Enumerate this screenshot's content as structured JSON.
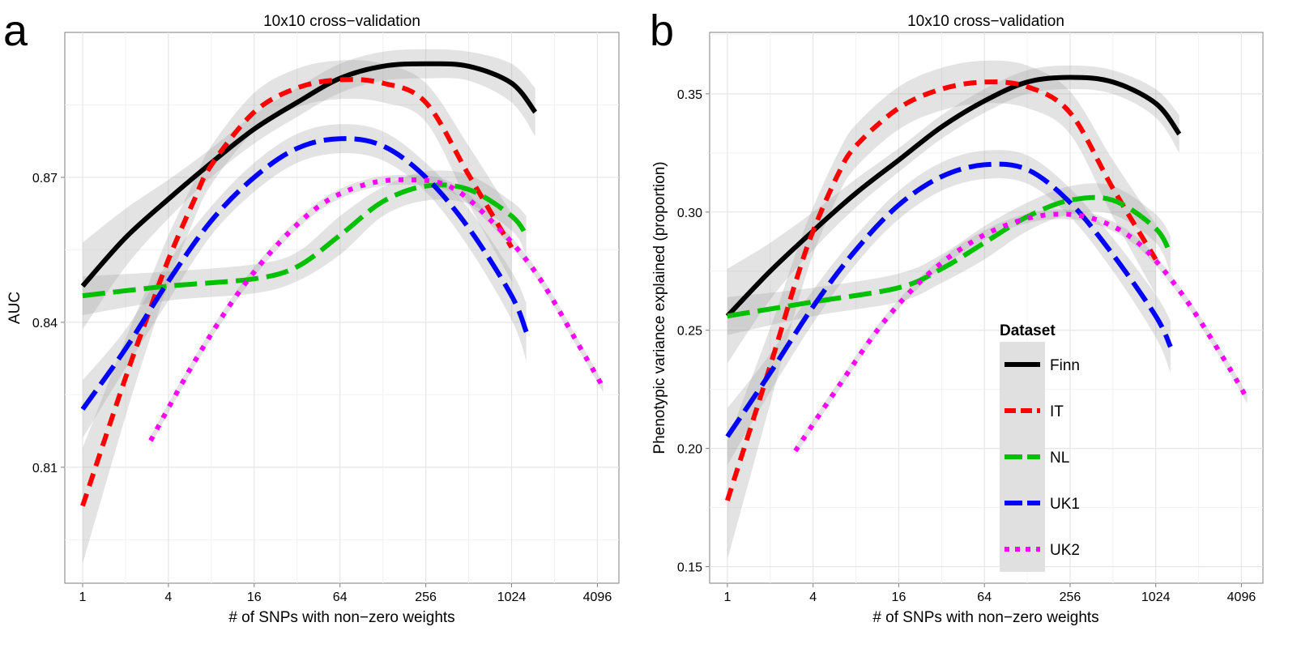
{
  "chart_data": [
    {
      "panel_label": "a",
      "type": "line",
      "title": "10x10 cross−validation",
      "xlabel": "# of SNPs with non−zero weights",
      "ylabel": "AUC",
      "x_scale": "log2",
      "xlim": [
        0.75,
        5800
      ],
      "x_ticks": [
        1,
        4,
        16,
        64,
        256,
        1024,
        4096
      ],
      "x_tick_labels": [
        "1",
        "4",
        "16",
        "64",
        "256",
        "1024",
        "4096"
      ],
      "ylim": [
        0.786,
        0.9
      ],
      "y_ticks": [
        0.81,
        0.84,
        0.87
      ],
      "y_tick_labels": [
        "0.81",
        "0.84",
        "0.87"
      ],
      "grid": true,
      "series": [
        {
          "name": "Finn",
          "color": "#000000",
          "style": "solid",
          "x": [
            1,
            2,
            4,
            8,
            16,
            32,
            64,
            128,
            256,
            512,
            1024,
            1500
          ],
          "y": [
            0.8475,
            0.8575,
            0.8655,
            0.873,
            0.88,
            0.8855,
            0.8905,
            0.893,
            0.8935,
            0.893,
            0.8895,
            0.8835
          ],
          "ci": [
            0.009,
            0.006,
            0.004,
            0.003,
            0.003,
            0.003,
            0.003,
            0.003,
            0.003,
            0.003,
            0.004,
            0.005
          ]
        },
        {
          "name": "IT",
          "color": "#ff0000",
          "style": "dashed",
          "x": [
            1,
            2,
            3,
            4,
            6,
            8,
            16,
            32,
            64,
            128,
            256,
            512,
            1024
          ],
          "y": [
            0.802,
            0.8285,
            0.843,
            0.853,
            0.865,
            0.8725,
            0.8835,
            0.8885,
            0.8902,
            0.8895,
            0.8855,
            0.8705,
            0.8555
          ],
          "ci": [
            0.012,
            0.008,
            0.006,
            0.005,
            0.004,
            0.004,
            0.004,
            0.004,
            0.004,
            0.004,
            0.004,
            0.006,
            0.007
          ]
        },
        {
          "name": "NL",
          "color": "#00c000",
          "style": "longdash",
          "x": [
            1,
            4,
            16,
            32,
            64,
            128,
            256,
            512,
            1024,
            1300
          ],
          "y": [
            0.8455,
            0.8475,
            0.849,
            0.8515,
            0.858,
            0.865,
            0.8682,
            0.8675,
            0.862,
            0.858
          ],
          "ci": [
            0.004,
            0.003,
            0.003,
            0.003,
            0.004,
            0.003,
            0.003,
            0.003,
            0.003,
            0.004
          ]
        },
        {
          "name": "UK1",
          "color": "#0000ff",
          "style": "longdash",
          "x": [
            1,
            2,
            4,
            8,
            16,
            32,
            64,
            128,
            256,
            512,
            1024,
            1300
          ],
          "y": [
            0.822,
            0.8345,
            0.8485,
            0.861,
            0.87,
            0.876,
            0.878,
            0.8765,
            0.87,
            0.8595,
            0.8455,
            0.838
          ],
          "ci": [
            0.006,
            0.004,
            0.004,
            0.003,
            0.003,
            0.003,
            0.003,
            0.003,
            0.003,
            0.004,
            0.005,
            0.006
          ]
        },
        {
          "name": "UK2",
          "color": "#ff00ff",
          "style": "dotted",
          "x": [
            3,
            6,
            12,
            24,
            48,
            96,
            192,
            384,
            768,
            1536,
            3072,
            4500
          ],
          "y": [
            0.8155,
            0.8315,
            0.8455,
            0.8565,
            0.8645,
            0.8685,
            0.8695,
            0.868,
            0.8605,
            0.85,
            0.835,
            0.8265
          ],
          "ci": [
            0.001,
            0.001,
            0.001,
            0.001,
            0.001,
            0.001,
            0.001,
            0.001,
            0.001,
            0.001,
            0.001,
            0.001
          ]
        }
      ]
    },
    {
      "panel_label": "b",
      "type": "line",
      "title": "10x10 cross−validation",
      "xlabel": "# of SNPs with non−zero weights",
      "ylabel": "Phenotypic variance explained (proportion)",
      "x_scale": "log2",
      "xlim": [
        0.75,
        5800
      ],
      "x_ticks": [
        1,
        4,
        16,
        64,
        256,
        1024,
        4096
      ],
      "x_tick_labels": [
        "1",
        "4",
        "16",
        "64",
        "256",
        "1024",
        "4096"
      ],
      "ylim": [
        0.143,
        0.376
      ],
      "y_ticks": [
        0.15,
        0.2,
        0.25,
        0.3,
        0.35
      ],
      "y_tick_labels": [
        "0.15",
        "0.20",
        "0.25",
        "0.30",
        "0.35"
      ],
      "grid": true,
      "legend_position": "inside-right",
      "series": [
        {
          "name": "Finn",
          "color": "#000000",
          "style": "solid",
          "x": [
            1,
            2,
            4,
            8,
            16,
            32,
            64,
            128,
            256,
            512,
            1024,
            1500
          ],
          "y": [
            0.256,
            0.275,
            0.292,
            0.308,
            0.322,
            0.336,
            0.347,
            0.355,
            0.357,
            0.355,
            0.346,
            0.333
          ],
          "ci": [
            0.02,
            0.012,
            0.008,
            0.006,
            0.005,
            0.005,
            0.005,
            0.005,
            0.005,
            0.005,
            0.006,
            0.008
          ]
        },
        {
          "name": "IT",
          "color": "#ff0000",
          "style": "dashed",
          "x": [
            1,
            2,
            3,
            4,
            6,
            8,
            16,
            32,
            64,
            128,
            256,
            512,
            1024
          ],
          "y": [
            0.178,
            0.235,
            0.27,
            0.292,
            0.316,
            0.328,
            0.344,
            0.352,
            0.355,
            0.353,
            0.342,
            0.31,
            0.28
          ],
          "ci": [
            0.025,
            0.016,
            0.012,
            0.01,
            0.009,
            0.009,
            0.009,
            0.009,
            0.009,
            0.009,
            0.009,
            0.012,
            0.015
          ]
        },
        {
          "name": "NL",
          "color": "#00c000",
          "style": "longdash",
          "x": [
            1,
            4,
            16,
            32,
            64,
            128,
            256,
            512,
            1024,
            1300
          ],
          "y": [
            0.256,
            0.262,
            0.268,
            0.276,
            0.287,
            0.298,
            0.305,
            0.305,
            0.293,
            0.282
          ],
          "ci": [
            0.008,
            0.006,
            0.006,
            0.006,
            0.007,
            0.006,
            0.006,
            0.006,
            0.006,
            0.008
          ]
        },
        {
          "name": "UK1",
          "color": "#0000ff",
          "style": "longdash",
          "x": [
            1,
            2,
            4,
            8,
            16,
            32,
            64,
            128,
            256,
            512,
            1024,
            1300
          ],
          "y": [
            0.205,
            0.232,
            0.26,
            0.284,
            0.303,
            0.315,
            0.32,
            0.318,
            0.304,
            0.282,
            0.256,
            0.243
          ],
          "ci": [
            0.012,
            0.008,
            0.007,
            0.006,
            0.006,
            0.006,
            0.006,
            0.006,
            0.006,
            0.007,
            0.009,
            0.011
          ]
        },
        {
          "name": "UK2",
          "color": "#ff00ff",
          "style": "dotted",
          "x": [
            3,
            6,
            12,
            24,
            48,
            96,
            192,
            384,
            768,
            1536,
            3072,
            4500
          ],
          "y": [
            0.199,
            0.226,
            0.252,
            0.272,
            0.286,
            0.295,
            0.299,
            0.297,
            0.287,
            0.266,
            0.238,
            0.221
          ],
          "ci": [
            0.002,
            0.002,
            0.002,
            0.002,
            0.002,
            0.002,
            0.002,
            0.002,
            0.002,
            0.002,
            0.002,
            0.002
          ]
        }
      ]
    }
  ],
  "legend": {
    "title": "Dataset",
    "items": [
      {
        "label": "Finn",
        "color": "#000000",
        "style": "solid"
      },
      {
        "label": "IT",
        "color": "#ff0000",
        "style": "dashed"
      },
      {
        "label": "NL",
        "color": "#00c000",
        "style": "longdash"
      },
      {
        "label": "UK1",
        "color": "#0000ff",
        "style": "longdash"
      },
      {
        "label": "UK2",
        "color": "#ff00ff",
        "style": "dotted"
      }
    ]
  }
}
